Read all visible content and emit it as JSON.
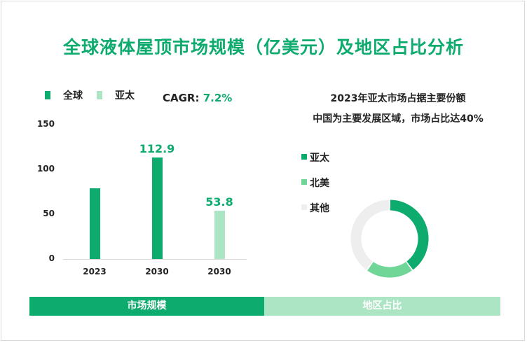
{
  "title": "全球液体屋顶市场规模（亿美元）及地区占比分析",
  "cagr": {
    "label": "CAGR:",
    "value": "7.2%"
  },
  "chart_data": [
    {
      "type": "bar",
      "legend": [
        {
          "name": "全球",
          "color": "#0dab6e"
        },
        {
          "name": "亚太",
          "color": "#abe5c4"
        }
      ],
      "categories": [
        "2023",
        "2030",
        "2030"
      ],
      "values": [
        79,
        112.9,
        53.8
      ],
      "bar_series": [
        "全球",
        "全球",
        "亚太"
      ],
      "data_labels": [
        "",
        "112.9",
        "53.8"
      ],
      "ylim": [
        0,
        150
      ],
      "yticks": [
        "150",
        "100",
        "50",
        "0"
      ],
      "grid": false
    },
    {
      "type": "pie",
      "variant": "donut",
      "title_lines": [
        "2023年亚太市场占据主要份额",
        "中国为主要发展区域，市场占比达40%"
      ],
      "slices": [
        {
          "name": "亚太",
          "value": 40,
          "color": "#0dab6e"
        },
        {
          "name": "北美",
          "value": 20,
          "color": "#6fd698"
        },
        {
          "name": "其他",
          "value": 40,
          "color": "#eeeeee"
        }
      ]
    }
  ],
  "footer": {
    "left": "市场规模",
    "right": "地区占比"
  }
}
